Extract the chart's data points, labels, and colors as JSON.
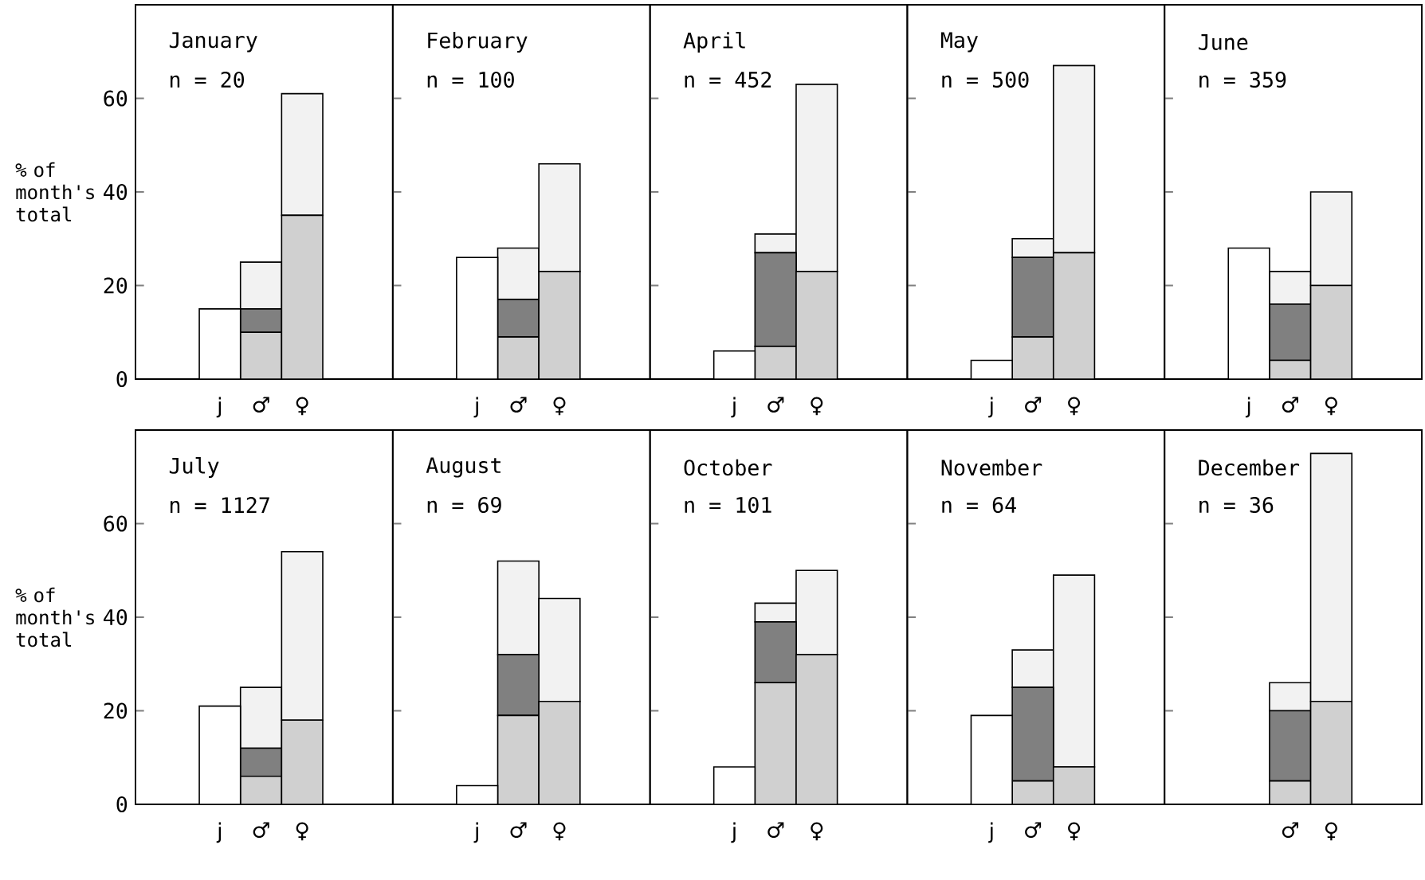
{
  "chart_data": [
    {
      "type": "bar",
      "stacked": true,
      "title": "January",
      "subtitle": "n = 20",
      "ylabel": "% of month's total",
      "categories": [
        "j",
        "♂",
        "♀"
      ],
      "ylim": [
        0,
        80
      ],
      "yticks": [
        0,
        20,
        40,
        60
      ],
      "series": [
        {
          "color": "#ffffff",
          "values": [
            15,
            null,
            null
          ]
        },
        {
          "color": "#d0d0d0",
          "values": [
            null,
            10,
            35
          ]
        },
        {
          "color": "#808080",
          "values": [
            null,
            5,
            null
          ]
        },
        {
          "color": "#f2f2f2",
          "values": [
            null,
            10,
            26
          ]
        }
      ]
    },
    {
      "type": "bar",
      "stacked": true,
      "title": "February",
      "subtitle": "n = 100",
      "categories": [
        "j",
        "♂",
        "♀"
      ],
      "ylim": [
        0,
        80
      ],
      "yticks": [
        0,
        20,
        40,
        60
      ],
      "tick_labels": "x",
      "series": [
        {
          "color": "#ffffff",
          "values": [
            26,
            null,
            null
          ]
        },
        {
          "color": "#d0d0d0",
          "values": [
            null,
            9,
            23
          ]
        },
        {
          "color": "#808080",
          "values": [
            null,
            8,
            null
          ]
        },
        {
          "color": "#f2f2f2",
          "values": [
            null,
            11,
            23
          ]
        }
      ]
    },
    {
      "type": "bar",
      "stacked": true,
      "title": "April",
      "subtitle": "n = 452",
      "categories": [
        "j",
        "♂",
        "♀"
      ],
      "ylim": [
        0,
        80
      ],
      "yticks": [
        0,
        20,
        40,
        60
      ],
      "tick_labels": "x",
      "series": [
        {
          "color": "#ffffff",
          "values": [
            6,
            null,
            null
          ]
        },
        {
          "color": "#d0d0d0",
          "values": [
            null,
            7,
            23
          ]
        },
        {
          "color": "#808080",
          "values": [
            null,
            20,
            null
          ]
        },
        {
          "color": "#f2f2f2",
          "values": [
            null,
            4,
            40
          ]
        }
      ]
    },
    {
      "type": "bar",
      "stacked": true,
      "title": "May",
      "subtitle": "n = 500",
      "categories": [
        "j",
        "♂",
        "♀"
      ],
      "ylim": [
        0,
        80
      ],
      "yticks": [
        0,
        20,
        40,
        60
      ],
      "tick_labels": "x",
      "series": [
        {
          "color": "#ffffff",
          "values": [
            4,
            null,
            null
          ]
        },
        {
          "color": "#d0d0d0",
          "values": [
            null,
            9,
            27
          ]
        },
        {
          "color": "#808080",
          "values": [
            null,
            17,
            null
          ]
        },
        {
          "color": "#f2f2f2",
          "values": [
            null,
            4,
            40
          ]
        }
      ]
    },
    {
      "type": "bar",
      "stacked": true,
      "title": "June",
      "subtitle": "n = 359",
      "categories": [
        "j",
        "♂",
        "♀"
      ],
      "ylim": [
        0,
        80
      ],
      "yticks": [
        0,
        20,
        40,
        60
      ],
      "tick_labels": "x",
      "series": [
        {
          "color": "#ffffff",
          "values": [
            28,
            null,
            null
          ]
        },
        {
          "color": "#d0d0d0",
          "values": [
            null,
            4,
            20
          ]
        },
        {
          "color": "#808080",
          "values": [
            null,
            12,
            null
          ]
        },
        {
          "color": "#f2f2f2",
          "values": [
            null,
            7,
            20
          ]
        }
      ]
    },
    {
      "type": "bar",
      "stacked": true,
      "title": "July",
      "subtitle": "n = 1127",
      "ylabel": "% of month's total",
      "categories": [
        "j",
        "♂",
        "♀"
      ],
      "ylim": [
        0,
        80
      ],
      "yticks": [
        0,
        20,
        40,
        60
      ],
      "series": [
        {
          "color": "#ffffff",
          "values": [
            21,
            null,
            null
          ]
        },
        {
          "color": "#d0d0d0",
          "values": [
            null,
            6,
            18
          ]
        },
        {
          "color": "#808080",
          "values": [
            null,
            6,
            null
          ]
        },
        {
          "color": "#f2f2f2",
          "values": [
            null,
            13,
            36
          ]
        }
      ]
    },
    {
      "type": "bar",
      "stacked": true,
      "title": "August",
      "subtitle": "n = 69",
      "categories": [
        "j",
        "♂",
        "♀"
      ],
      "ylim": [
        0,
        80
      ],
      "yticks": [
        0,
        20,
        40,
        60
      ],
      "tick_labels": "x",
      "series": [
        {
          "color": "#ffffff",
          "values": [
            4,
            null,
            null
          ]
        },
        {
          "color": "#d0d0d0",
          "values": [
            null,
            19,
            22
          ]
        },
        {
          "color": "#808080",
          "values": [
            null,
            13,
            null
          ]
        },
        {
          "color": "#f2f2f2",
          "values": [
            null,
            20,
            22
          ]
        }
      ]
    },
    {
      "type": "bar",
      "stacked": true,
      "title": "October",
      "subtitle": "n = 101",
      "categories": [
        "j",
        "♂",
        "♀"
      ],
      "ylim": [
        0,
        80
      ],
      "yticks": [
        0,
        20,
        40,
        60
      ],
      "tick_labels": "x",
      "series": [
        {
          "color": "#ffffff",
          "values": [
            8,
            null,
            null
          ]
        },
        {
          "color": "#d0d0d0",
          "values": [
            null,
            26,
            32
          ]
        },
        {
          "color": "#808080",
          "values": [
            null,
            13,
            null
          ]
        },
        {
          "color": "#f2f2f2",
          "values": [
            null,
            4,
            18
          ]
        }
      ]
    },
    {
      "type": "bar",
      "stacked": true,
      "title": "November",
      "subtitle": "n = 64",
      "categories": [
        "j",
        "♂",
        "♀"
      ],
      "ylim": [
        0,
        80
      ],
      "yticks": [
        0,
        20,
        40,
        60
      ],
      "tick_labels": "x",
      "series": [
        {
          "color": "#ffffff",
          "values": [
            19,
            null,
            null
          ]
        },
        {
          "color": "#d0d0d0",
          "values": [
            null,
            5,
            8
          ]
        },
        {
          "color": "#808080",
          "values": [
            null,
            20,
            null
          ]
        },
        {
          "color": "#f2f2f2",
          "values": [
            null,
            8,
            41
          ]
        }
      ]
    },
    {
      "type": "bar",
      "stacked": true,
      "title": "December",
      "subtitle": "n = 36",
      "categories": [
        null,
        "♂",
        "♀"
      ],
      "ylim": [
        0,
        80
      ],
      "yticks": [
        0,
        20,
        40,
        60
      ],
      "tick_labels": "x",
      "series": [
        {
          "color": "#ffffff",
          "values": [
            null,
            null,
            null
          ]
        },
        {
          "color": "#d0d0d0",
          "values": [
            null,
            5,
            22
          ]
        },
        {
          "color": "#808080",
          "values": [
            null,
            15,
            null
          ]
        },
        {
          "color": "#f2f2f2",
          "values": [
            null,
            6,
            53
          ]
        }
      ]
    }
  ]
}
